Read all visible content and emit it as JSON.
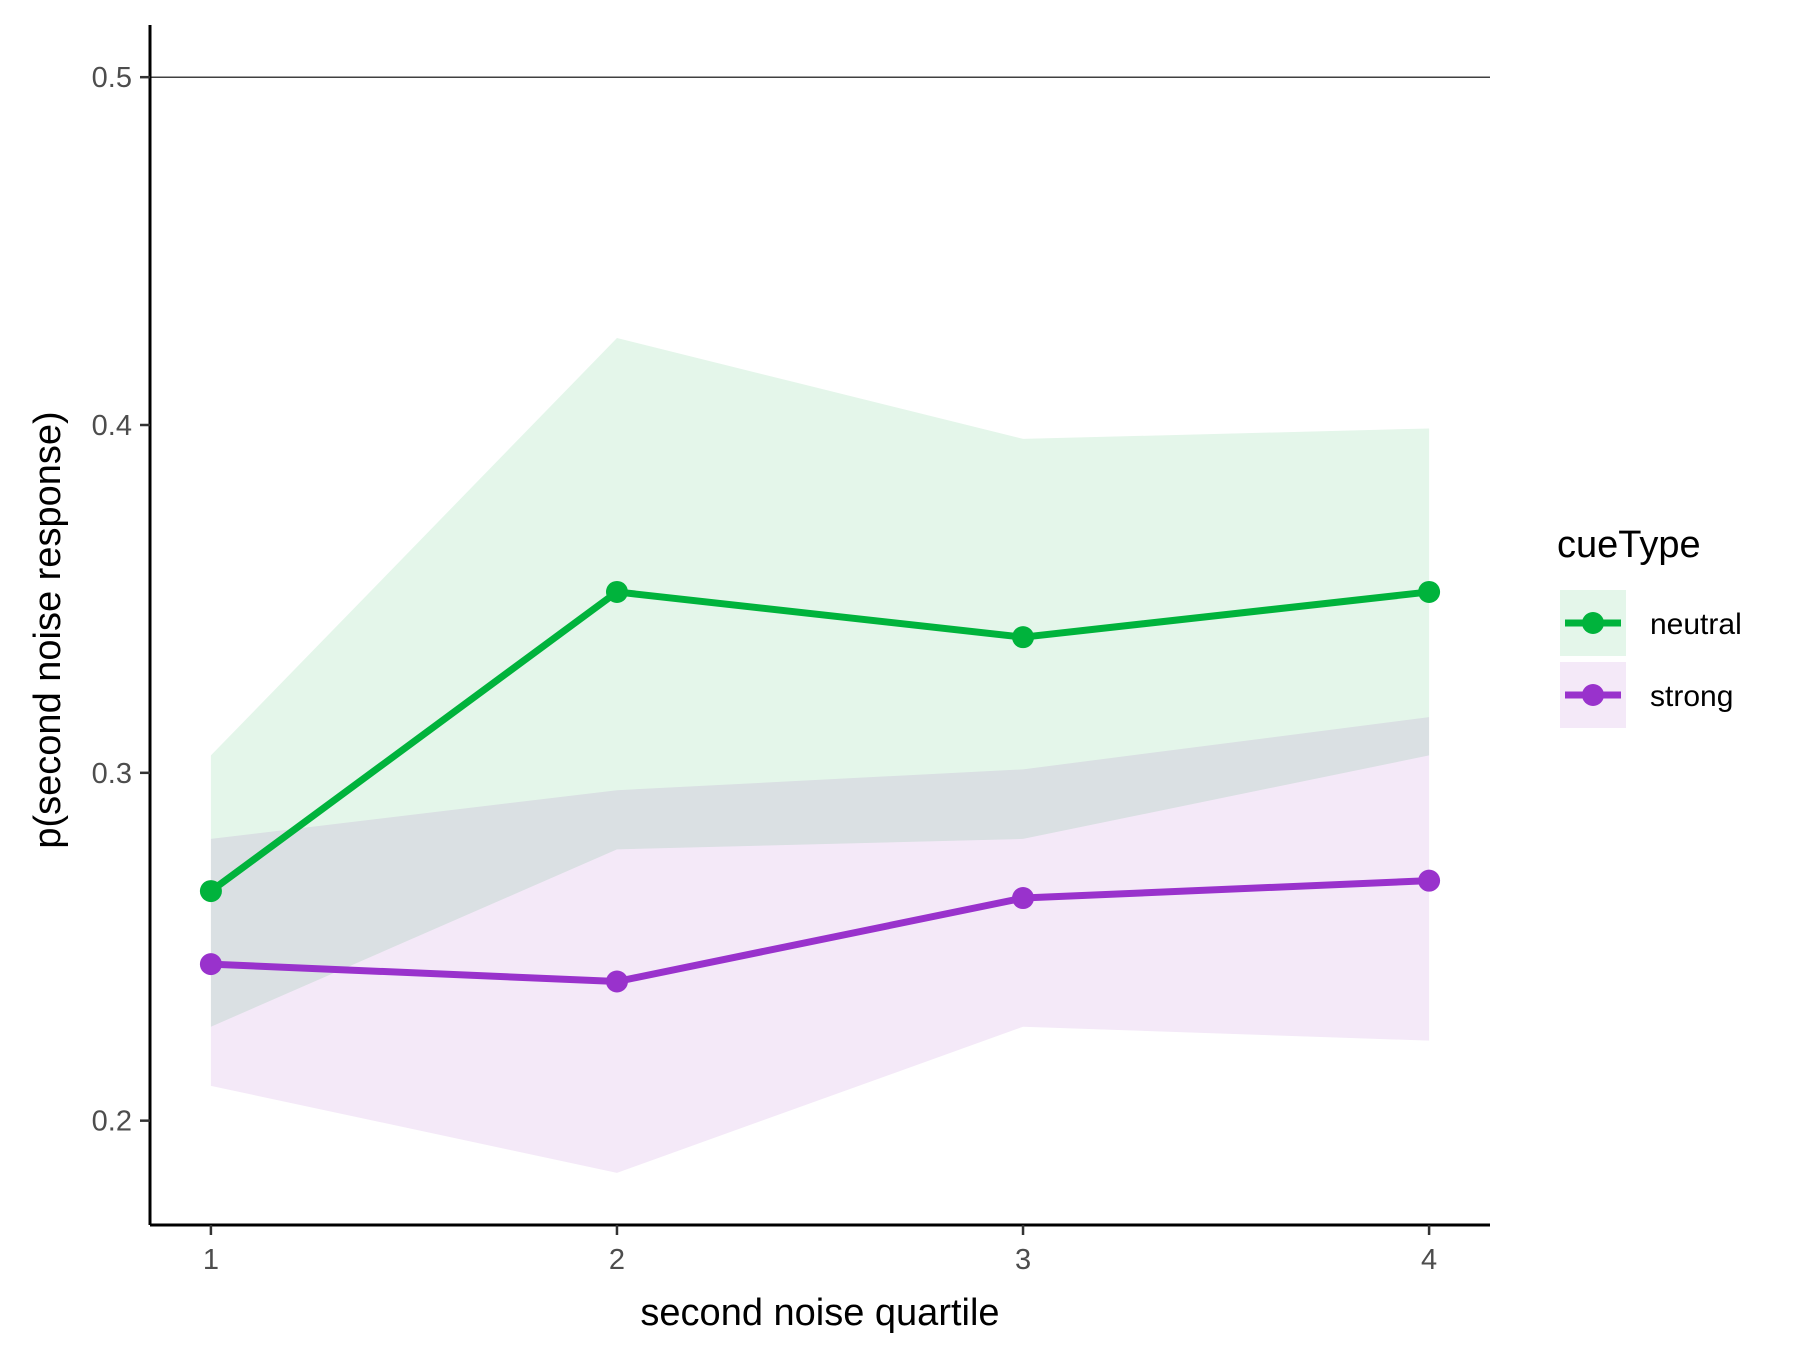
{
  "chart_data": {
    "type": "line",
    "x": [
      1,
      2,
      3,
      4
    ],
    "xlabel": "second noise quartile",
    "ylabel": "p(second noise response)",
    "xticks": [
      "1",
      "2",
      "3",
      "4"
    ],
    "yticks": [
      "0.2",
      "0.3",
      "0.4",
      "0.5"
    ],
    "ytick_values": [
      0.2,
      0.3,
      0.4,
      0.5
    ],
    "xlim": [
      0.85,
      4.15
    ],
    "ylim": [
      0.17,
      0.515
    ],
    "reference_line": 0.5,
    "grid": false,
    "legend": {
      "title": "cueType",
      "position": "right"
    },
    "series": [
      {
        "name": "neutral",
        "color": "#00b33c",
        "ribbon_color": "#e4f6ea",
        "values": [
          0.266,
          0.352,
          0.339,
          0.352
        ],
        "lower": [
          0.227,
          0.278,
          0.281,
          0.305
        ],
        "upper": [
          0.305,
          0.425,
          0.396,
          0.399
        ]
      },
      {
        "name": "strong",
        "color": "#9932cc",
        "ribbon_color": "#f4e9f8",
        "values": [
          0.245,
          0.24,
          0.264,
          0.269
        ],
        "lower": [
          0.21,
          0.185,
          0.227,
          0.223
        ],
        "upper": [
          0.281,
          0.295,
          0.301,
          0.316
        ]
      }
    ],
    "overlap_color": "#e0e3e7"
  }
}
